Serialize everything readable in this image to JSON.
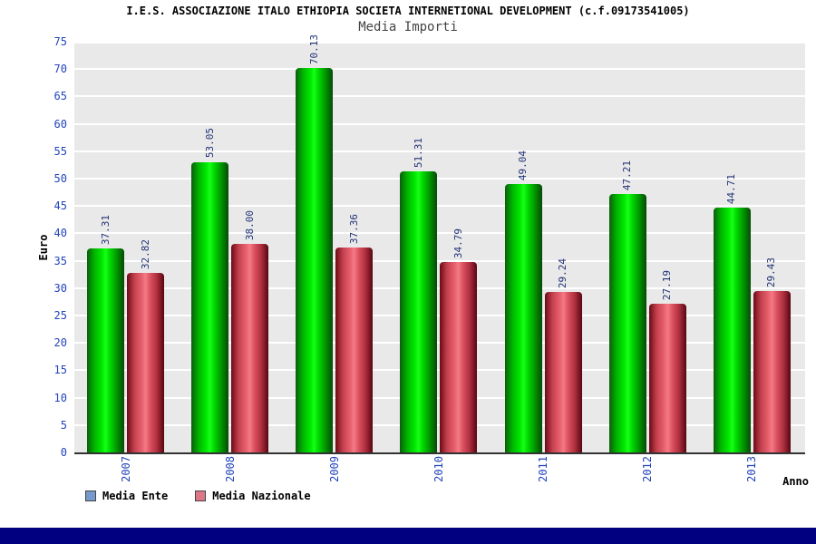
{
  "header": {
    "title": "I.E.S. ASSOCIAZIONE ITALO ETHIOPIA SOCIETA INTERNETIONAL DEVELOPMENT (c.f.09173541005)"
  },
  "chart_data": {
    "type": "bar",
    "title": "Media Importi",
    "xlabel": "Anno",
    "ylabel": "Euro",
    "ylim": [
      0,
      75
    ],
    "ytick_step": 5,
    "grid": true,
    "legend_position": "bottom-left",
    "categories": [
      "2007",
      "2008",
      "2009",
      "2010",
      "2011",
      "2012",
      "2013"
    ],
    "series": [
      {
        "name": "Media Ente",
        "color": "#00e000",
        "values": [
          37.31,
          53.05,
          70.13,
          51.31,
          49.04,
          47.21,
          44.71
        ],
        "labels": [
          "37.31",
          "53.05",
          "70.13",
          "51.31",
          "49.04",
          "47.21",
          "44.71"
        ]
      },
      {
        "name": "Media Nazionale",
        "color": "#e05565",
        "values": [
          32.82,
          38.0,
          37.36,
          34.79,
          29.24,
          27.19,
          29.43
        ],
        "labels": [
          "32.82",
          "38.00",
          "37.36",
          "34.79",
          "29.24",
          "27.19",
          "29.43"
        ]
      }
    ]
  },
  "legend": {
    "items": [
      {
        "label": "Media Ente",
        "swatch": "#7799cc"
      },
      {
        "label": "Media Nazionale",
        "swatch": "#dd7788"
      }
    ]
  }
}
